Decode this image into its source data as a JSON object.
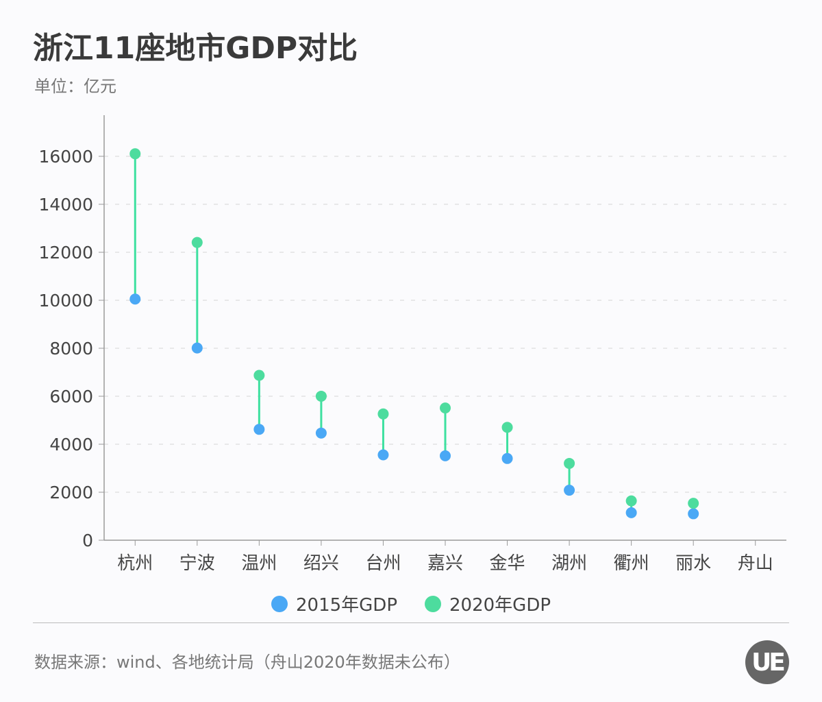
{
  "chart_data": {
    "type": "dumbbell",
    "title": "浙江11座地市GDP对比",
    "subtitle": "单位：亿元",
    "categories": [
      "杭州",
      "宁波",
      "温州",
      "绍兴",
      "台州",
      "嘉兴",
      "金华",
      "湖州",
      "衢州",
      "丽水",
      "舟山"
    ],
    "series": [
      {
        "name": "2015年GDP",
        "color": "#4aa8f5",
        "values": [
          10050,
          8011,
          4620,
          4466,
          3558,
          3517,
          3406,
          2084,
          1147,
          1102,
          null
        ]
      },
      {
        "name": "2020年GDP",
        "color": "#4ddc9e",
        "values": [
          16106,
          12409,
          6871,
          6001,
          5263,
          5510,
          4704,
          3201,
          1639,
          1540,
          null
        ]
      }
    ],
    "connector_color": "#3ee0a0",
    "ylim": [
      0,
      16000
    ],
    "yticks": [
      "0",
      "2000",
      "4000",
      "6000",
      "8000",
      "10000",
      "12000",
      "14000",
      "16000"
    ],
    "grid": "horizontal dashed",
    "legend": "bottom"
  },
  "footer": {
    "source": "数据来源：wind、各地统计局（舟山2020年数据未公布）",
    "logo_text": "UE"
  }
}
